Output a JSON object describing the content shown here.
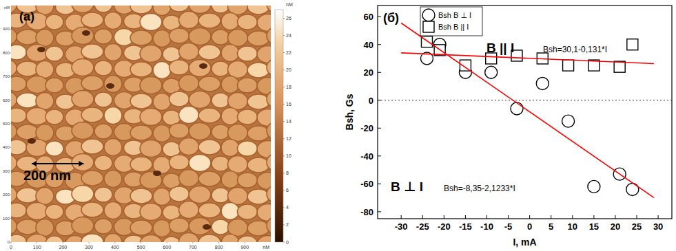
{
  "chart_data": [
    {
      "type": "image",
      "title": "(a)",
      "xlabel": "nM",
      "ylabel": "nM",
      "xlim": [
        0,
        1000
      ],
      "ylim": [
        0,
        1000
      ],
      "xticks": [
        0,
        100,
        200,
        300,
        400,
        500,
        600,
        700,
        800,
        900
      ],
      "yticks": [
        0,
        100,
        200,
        300,
        400,
        500,
        600,
        700,
        800,
        900
      ],
      "colorbar_label": "nM",
      "colorbar_range": [
        0,
        27
      ],
      "colorbar_ticks": [
        0,
        2,
        4,
        6,
        8,
        10,
        12,
        14,
        16,
        18,
        20,
        22,
        24,
        26
      ],
      "scale_bar": {
        "value": 200,
        "label": "200 nm"
      }
    },
    {
      "type": "scatter",
      "title": "(б)",
      "xlabel": "I, mA",
      "ylabel": "Bsh, Gs",
      "xlim": [
        -35.5,
        33.2
      ],
      "ylim": [
        -85,
        68
      ],
      "xticks": [
        -30,
        -25,
        -20,
        -15,
        -10,
        -5,
        0,
        5,
        10,
        15,
        20,
        25,
        30
      ],
      "yticks": [
        -80,
        -60,
        -40,
        -20,
        0,
        20,
        40,
        60
      ],
      "reference_y": [
        0
      ],
      "legend": "upper left",
      "grid": false,
      "annotations": [
        "B || I",
        "Bsh=30,1-0,131*I",
        "B ⊥ I",
        "Bsh=-8,35-2,1233*I"
      ],
      "series": [
        {
          "name": "Bsh B ⊥ I",
          "type": "scatter",
          "marker": "circle",
          "color": "#000000",
          "x": [
            -24,
            -21,
            -15,
            -9,
            -3,
            3,
            9,
            15,
            21,
            24
          ],
          "values": [
            30,
            40,
            20,
            20,
            -6,
            12,
            -15,
            -62,
            -53,
            -64
          ]
        },
        {
          "name": "Bsh B || I",
          "type": "scatter",
          "marker": "square",
          "color": "#000000",
          "x": [
            -24,
            -21,
            -15,
            -9,
            -3,
            3,
            9,
            15,
            21,
            24
          ],
          "values": [
            42,
            36,
            25,
            30,
            32,
            30,
            25,
            25,
            24,
            40
          ]
        },
        {
          "type": "line",
          "line_style": "solid",
          "color": "#ff0000",
          "x": [
            -30,
            29
          ],
          "values": [
            55.4,
            -69.9
          ]
        },
        {
          "type": "line",
          "line_style": "solid",
          "color": "#ff0000",
          "x": [
            -30,
            29
          ],
          "values": [
            34.0,
            26.3
          ]
        }
      ]
    }
  ]
}
